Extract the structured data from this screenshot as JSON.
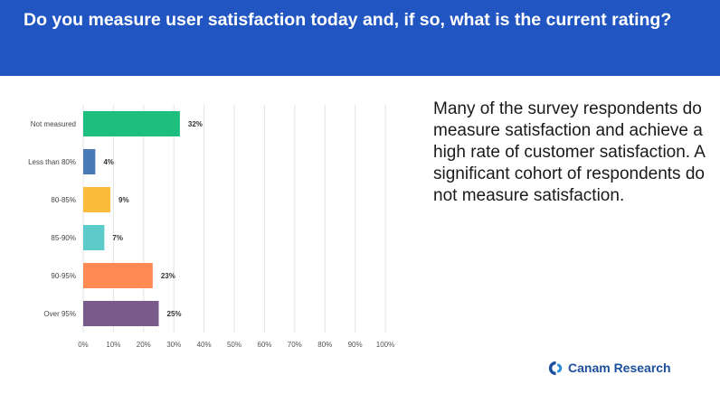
{
  "header": {
    "title": "Do you measure user satisfaction today and, if so, what is the current rating?"
  },
  "description": "Many of the survey respondents do measure satisfaction and achieve a high rate of customer satisfaction. A significant cohort of respondents do not measure satisfaction.",
  "brand": {
    "name": "Canam Research",
    "color": "#1c4f9c"
  },
  "colors": {
    "header_bg": "#2156c2"
  },
  "chart_data": {
    "type": "bar",
    "orientation": "horizontal",
    "categories": [
      "Not measured",
      "Less than 80%",
      "80-85%",
      "85-90%",
      "90-95%",
      "Over 95%"
    ],
    "values": [
      32,
      4,
      9,
      7,
      23,
      25
    ],
    "data_labels": [
      "32%",
      "4%",
      "9%",
      "7%",
      "23%",
      "25%"
    ],
    "bar_colors": [
      "#1dbf7e",
      "#4a7ab5",
      "#fbbc3c",
      "#5ecbcb",
      "#ff8a54",
      "#7b5b8b"
    ],
    "xlim": [
      0,
      100
    ],
    "x_ticks": [
      "0%",
      "10%",
      "20%",
      "30%",
      "40%",
      "50%",
      "60%",
      "70%",
      "80%",
      "90%",
      "100%"
    ],
    "grid": true
  }
}
